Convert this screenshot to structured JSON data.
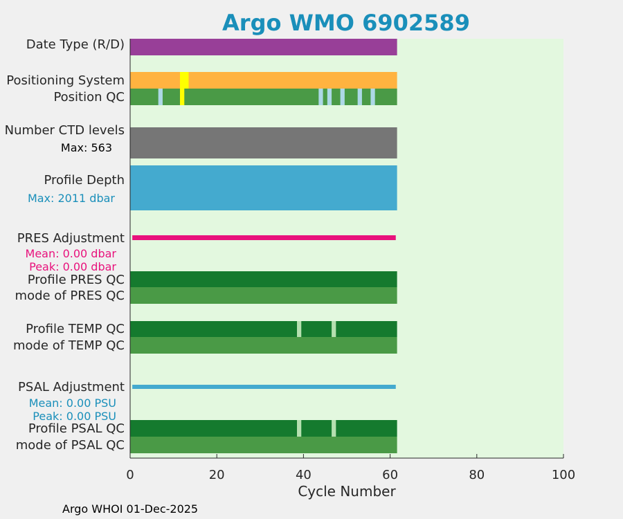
{
  "chart_data": {
    "type": "bar",
    "title": "Argo WMO 6902589",
    "xlabel": "Cycle Number",
    "ylabel": "",
    "xlim": [
      0,
      100
    ],
    "xticks": [
      "0",
      "20",
      "40",
      "60",
      "80",
      "100"
    ],
    "grid": false,
    "footer": "Argo WHOI 01-Dec-2025",
    "rows": [
      {
        "key": "date_type",
        "label": "Date Type (R/D)",
        "note": "",
        "cycle_range": [
          1,
          61
        ],
        "base_color": "#983f98",
        "markers": []
      },
      {
        "key": "positioning_system",
        "label": "Positioning System",
        "note": "",
        "cycle_range": [
          1,
          61
        ],
        "base_color": "#ffb340",
        "markers": [
          {
            "from": 12,
            "to": 13,
            "color": "#ffff00"
          }
        ]
      },
      {
        "key": "position_qc",
        "label": "Position QC",
        "note": "",
        "cycle_range": [
          1,
          61
        ],
        "base_color": "#4a9a46",
        "markers": [
          {
            "from": 7,
            "to": 7,
            "color": "#add8e6"
          },
          {
            "from": 12,
            "to": 12,
            "color": "#ffff00"
          },
          {
            "from": 44,
            "to": 44,
            "color": "#add8e6"
          },
          {
            "from": 46,
            "to": 46,
            "color": "#add8e6"
          },
          {
            "from": 49,
            "to": 49,
            "color": "#add8e6"
          },
          {
            "from": 53,
            "to": 53,
            "color": "#add8e6"
          },
          {
            "from": 56,
            "to": 56,
            "color": "#add8e6"
          }
        ]
      },
      {
        "key": "ctd_levels",
        "label": "Number CTD levels",
        "note": "Max: 563",
        "note_color": "#000000",
        "cycle_range": [
          1,
          61
        ],
        "base_color": "#767676",
        "markers": [],
        "max_value": 563
      },
      {
        "key": "profile_depth",
        "label": "Profile Depth",
        "note": "Max: 2011 dbar",
        "note_color": "#1a8fba",
        "cycle_range": [
          1,
          61
        ],
        "base_color": "#44aacf",
        "markers": [],
        "max_value": 2011
      },
      {
        "key": "pres_adjustment",
        "label": "PRES Adjustment",
        "notes": [
          "Mean: 0.00 dbar",
          "Peak: 0.00 dbar"
        ],
        "note_color": "#e8127c",
        "cycle_range": [
          1,
          61
        ],
        "base_color": "#e8127c",
        "markers": [],
        "mean": 0.0,
        "peak": 0.0
      },
      {
        "key": "profile_pres_qc",
        "label": "Profile PRES QC",
        "note": "",
        "cycle_range": [
          1,
          61
        ],
        "base_color": "#157a2e",
        "markers": []
      },
      {
        "key": "mode_pres_qc",
        "label": "mode of PRES QC",
        "note": "",
        "cycle_range": [
          1,
          61
        ],
        "base_color": "#4a9a46",
        "markers": []
      },
      {
        "key": "profile_temp_qc",
        "label": "Profile TEMP QC",
        "note": "",
        "cycle_range": [
          1,
          61
        ],
        "base_color": "#157a2e",
        "markers": [
          {
            "from": 39,
            "to": 39,
            "color": "#b5e0b0"
          },
          {
            "from": 47,
            "to": 47,
            "color": "#b5e0b0"
          }
        ]
      },
      {
        "key": "mode_temp_qc",
        "label": "mode of TEMP QC",
        "note": "",
        "cycle_range": [
          1,
          61
        ],
        "base_color": "#4a9a46",
        "markers": []
      },
      {
        "key": "psal_adjustment",
        "label": "PSAL Adjustment",
        "notes": [
          "Mean: 0.00 PSU",
          "Peak: 0.00 PSU"
        ],
        "note_color": "#1a8fba",
        "cycle_range": [
          1,
          61
        ],
        "base_color": "#44aacf",
        "markers": [],
        "mean": 0.0,
        "peak": 0.0
      },
      {
        "key": "profile_psal_qc",
        "label": "Profile PSAL QC",
        "note": "",
        "cycle_range": [
          1,
          61
        ],
        "base_color": "#157a2e",
        "markers": [
          {
            "from": 39,
            "to": 39,
            "color": "#b5e0b0"
          },
          {
            "from": 47,
            "to": 47,
            "color": "#b5e0b0"
          }
        ]
      },
      {
        "key": "mode_psal_qc",
        "label": "mode of PSAL QC",
        "note": "",
        "cycle_range": [
          1,
          61
        ],
        "base_color": "#4a9a46",
        "markers": []
      }
    ]
  },
  "colors": {
    "title": "#1a8fba",
    "plot_background": "#e3f8df",
    "figure_background": "#f0f0f0",
    "axis": "#262626"
  }
}
